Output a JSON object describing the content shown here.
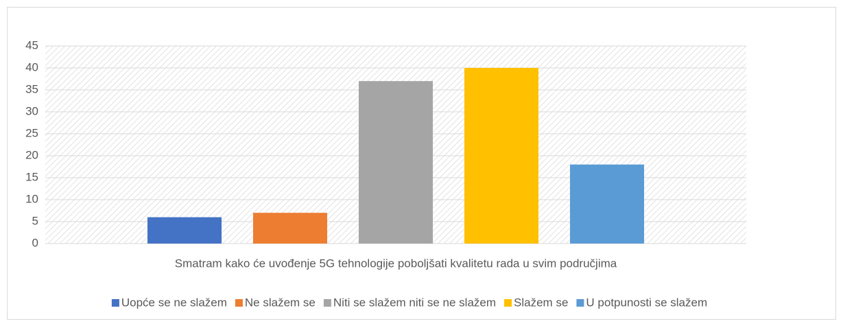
{
  "chart_data": {
    "type": "bar",
    "categories": [
      "Smatram kako će uvođenje 5G tehnologije poboljšati kvalitetu rada u svim područjima"
    ],
    "series": [
      {
        "name": "Uopće se ne slažem",
        "color": "#4472c4",
        "values": [
          6
        ]
      },
      {
        "name": "Ne slažem se",
        "color": "#ed7d31",
        "values": [
          7
        ]
      },
      {
        "name": "Niti se slažem niti se ne slažem",
        "color": "#a5a5a5",
        "values": [
          37
        ]
      },
      {
        "name": "Slažem se",
        "color": "#ffc000",
        "values": [
          40
        ]
      },
      {
        "name": "U potpunosti se slažem",
        "color": "#5b9bd5",
        "values": [
          18
        ]
      }
    ],
    "ylim": [
      0,
      45
    ],
    "yticks": [
      0,
      5,
      10,
      15,
      20,
      25,
      30,
      35,
      40,
      45
    ],
    "grid": true,
    "legend": "bottom"
  }
}
